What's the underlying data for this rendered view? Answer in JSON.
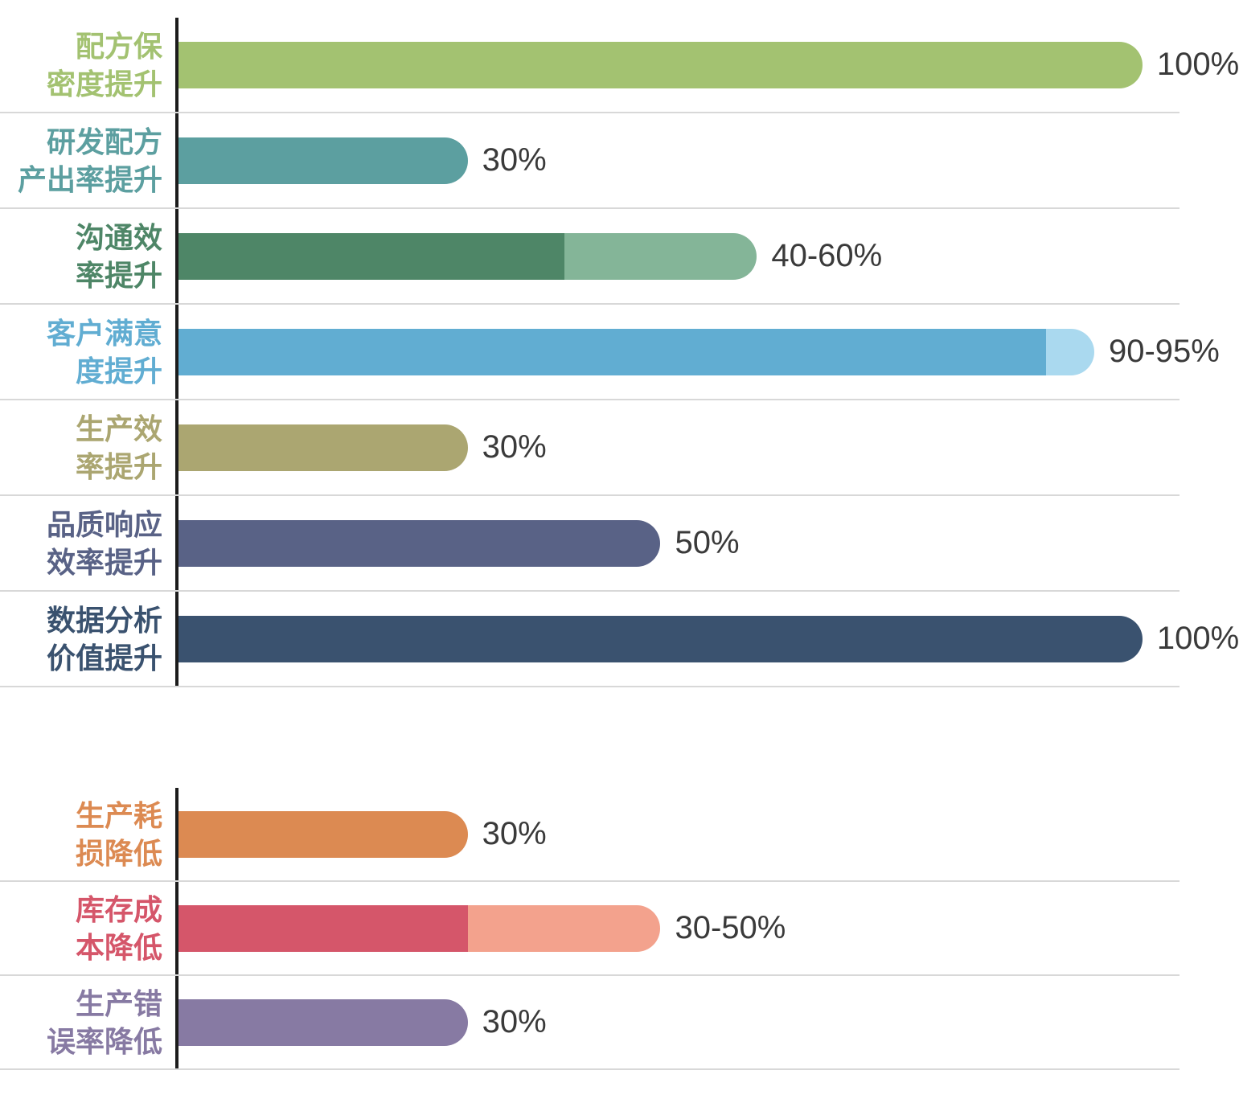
{
  "page": {
    "background": "#ffffff",
    "axis_color": "#1c1c1c",
    "separator_color": "#d8d8d8",
    "value_text_color": "#3a3a3a"
  },
  "chart_data": [
    {
      "type": "bar",
      "orientation": "horizontal",
      "title": "",
      "xlabel": "",
      "ylabel": "",
      "unit": "%",
      "xlim": [
        0,
        100
      ],
      "grid": false,
      "legend": "none",
      "bars": [
        {
          "label": "配方保\n密度提升",
          "value": 100,
          "value_label": "100%",
          "color": "#a3c271"
        },
        {
          "label": "研发配方\n产出率提升",
          "value": 30,
          "value_label": "30%",
          "color": "#5c9fa0"
        },
        {
          "label": "沟通效\n率提升",
          "value": 40,
          "value_max": 60,
          "value_label": "40-60%",
          "color": "#4e8667",
          "color_light": "#84b598"
        },
        {
          "label": "客户满意\n度提升",
          "value": 90,
          "value_max": 95,
          "value_label": "90-95%",
          "color": "#61add2",
          "color_light": "#aad9ef"
        },
        {
          "label": "生产效\n率提升",
          "value": 30,
          "value_label": "30%",
          "color": "#aba671"
        },
        {
          "label": "品质响应\n效率提升",
          "value": 50,
          "value_label": "50%",
          "color": "#596286"
        },
        {
          "label": "数据分析\n价值提升",
          "value": 100,
          "value_label": "100%",
          "color": "#3a526f"
        }
      ]
    },
    {
      "type": "bar",
      "orientation": "horizontal",
      "title": "",
      "xlabel": "",
      "ylabel": "",
      "unit": "%",
      "xlim": [
        0,
        100
      ],
      "grid": false,
      "legend": "none",
      "bars": [
        {
          "label": "生产耗\n损降低",
          "value": 30,
          "value_label": "30%",
          "color": "#dc8a52"
        },
        {
          "label": "库存成\n本降低",
          "value": 30,
          "value_max": 50,
          "value_label": "30-50%",
          "color": "#d5566a",
          "color_light": "#f3a28d"
        },
        {
          "label": "生产错\n误率降低",
          "value": 30,
          "value_label": "30%",
          "color": "#877aa3"
        }
      ]
    }
  ]
}
